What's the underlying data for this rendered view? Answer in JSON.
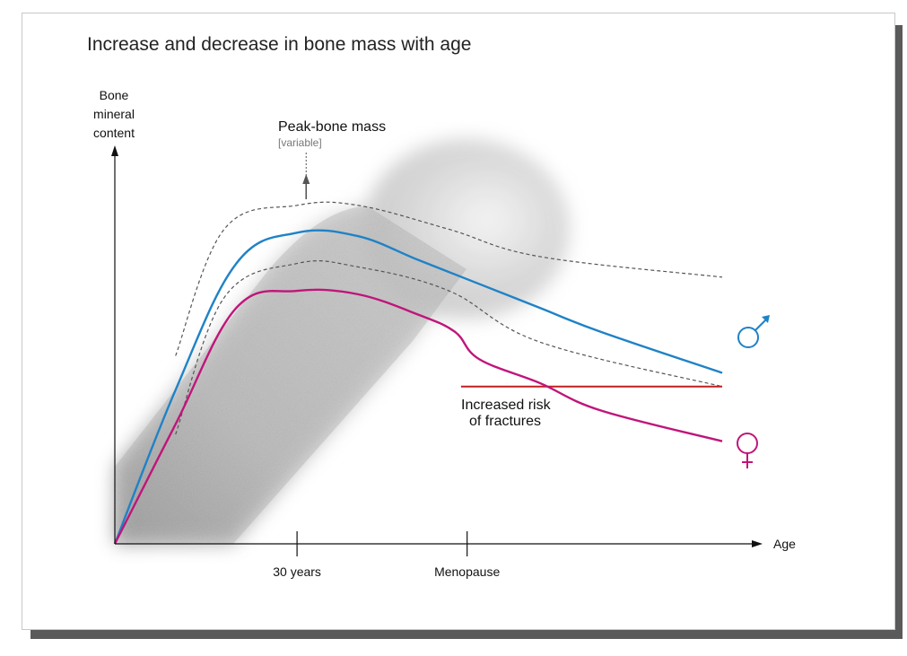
{
  "chart_data": {
    "type": "line",
    "title": "Increase and decrease in bone mass with age",
    "ylabel_lines": [
      "Bone",
      "mineral",
      "content"
    ],
    "xlabel": "Age",
    "x_ticks": [
      "30 years",
      "Menopause"
    ],
    "annotations": {
      "peak_label": "Peak-bone mass",
      "peak_sub": "[variable]",
      "risk_line1": "Increased risk",
      "risk_line2": "of fractures"
    },
    "series": [
      {
        "name": "male",
        "symbol": "♂",
        "color": "#1f82c6",
        "points": [
          [
            0,
            0
          ],
          [
            0.1,
            0.45
          ],
          [
            0.2,
            0.82
          ],
          [
            0.3,
            0.91
          ],
          [
            0.4,
            0.9
          ],
          [
            0.5,
            0.83
          ],
          [
            0.6,
            0.76
          ],
          [
            0.7,
            0.69
          ],
          [
            0.8,
            0.62
          ],
          [
            1.0,
            0.5
          ]
        ]
      },
      {
        "name": "female",
        "symbol": "♀",
        "color": "#c0157a",
        "points": [
          [
            0,
            0
          ],
          [
            0.1,
            0.35
          ],
          [
            0.2,
            0.69
          ],
          [
            0.3,
            0.74
          ],
          [
            0.4,
            0.73
          ],
          [
            0.5,
            0.67
          ],
          [
            0.56,
            0.62
          ],
          [
            0.6,
            0.54
          ],
          [
            0.7,
            0.47
          ],
          [
            0.8,
            0.39
          ],
          [
            1.0,
            0.3
          ]
        ]
      }
    ],
    "bands": {
      "upper": [
        [
          0.1,
          0.55
        ],
        [
          0.18,
          0.92
        ],
        [
          0.3,
          0.99
        ],
        [
          0.4,
          0.99
        ],
        [
          0.55,
          0.92
        ],
        [
          0.7,
          0.84
        ],
        [
          1.0,
          0.78
        ]
      ],
      "lower": [
        [
          0.1,
          0.32
        ],
        [
          0.18,
          0.72
        ],
        [
          0.3,
          0.82
        ],
        [
          0.4,
          0.81
        ],
        [
          0.55,
          0.74
        ],
        [
          0.7,
          0.59
        ],
        [
          1.0,
          0.46
        ]
      ]
    },
    "fracture_threshold": 0.46,
    "colors": {
      "threshold": "#c02020",
      "band": "#555555",
      "axis": "#111111"
    }
  }
}
